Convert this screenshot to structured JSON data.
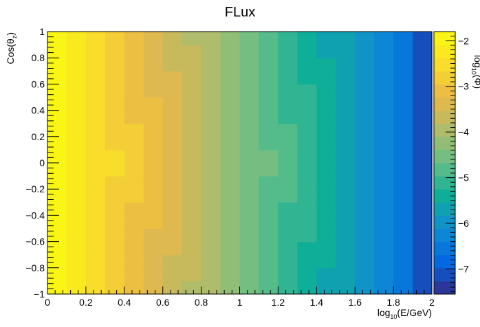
{
  "chart_data": {
    "type": "heatmap",
    "title": "FLux",
    "xlabel": {
      "pre": "log",
      "sub": "10",
      "post": "(E/GeV)"
    },
    "ylabel": {
      "pre": "Cos(θ",
      "sub": "z",
      "post": ")"
    },
    "zlabel": {
      "pre": "log",
      "sub": "10",
      "post": "(Φ)"
    },
    "xlim": [
      0,
      2
    ],
    "ylim": [
      -1,
      1
    ],
    "zlim": [
      -7.55,
      -1.8
    ],
    "x_ticks": [
      {
        "value": 0,
        "label": "0"
      },
      {
        "value": 0.2,
        "label": "0.2"
      },
      {
        "value": 0.4,
        "label": "0.4"
      },
      {
        "value": 0.6,
        "label": "0.6"
      },
      {
        "value": 0.8,
        "label": "0.8"
      },
      {
        "value": 1,
        "label": "1"
      },
      {
        "value": 1.2,
        "label": "1.2"
      },
      {
        "value": 1.4,
        "label": "1.4"
      },
      {
        "value": 1.6,
        "label": "1.6"
      },
      {
        "value": 1.8,
        "label": "1.8"
      },
      {
        "value": 2,
        "label": "2"
      }
    ],
    "y_ticks": [
      {
        "value": -1,
        "label": "−1"
      },
      {
        "value": -0.8,
        "label": "−0.8"
      },
      {
        "value": -0.6,
        "label": "−0.6"
      },
      {
        "value": -0.4,
        "label": "−0.4"
      },
      {
        "value": -0.2,
        "label": "−0.2"
      },
      {
        "value": 0,
        "label": "0"
      },
      {
        "value": 0.2,
        "label": "0.2"
      },
      {
        "value": 0.4,
        "label": "0.4"
      },
      {
        "value": 0.6,
        "label": "0.6"
      },
      {
        "value": 0.8,
        "label": "0.8"
      },
      {
        "value": 1,
        "label": "1"
      }
    ],
    "z_ticks": [
      {
        "value": -2,
        "label": "−2"
      },
      {
        "value": -3,
        "label": "−3"
      },
      {
        "value": -4,
        "label": "−4"
      },
      {
        "value": -5,
        "label": "−5"
      },
      {
        "value": -6,
        "label": "−6"
      },
      {
        "value": -7,
        "label": "−7"
      }
    ],
    "x_bins": 20,
    "y_bins": 20,
    "y_bin_centers": [
      -0.95,
      -0.85,
      -0.75,
      -0.65,
      -0.55,
      -0.45,
      -0.35,
      -0.25,
      -0.15,
      -0.05,
      0.05,
      0.15,
      0.25,
      0.35,
      0.45,
      0.55,
      0.65,
      0.75,
      0.85,
      0.95
    ],
    "column_center_values": [
      -1.9,
      -2.15,
      -2.4,
      -2.65,
      -2.9,
      -3.15,
      -3.4,
      -3.65,
      -3.9,
      -4.15,
      -4.4,
      -4.65,
      -4.9,
      -5.15,
      -5.4,
      -5.65,
      -5.9,
      -6.15,
      -6.4,
      -7.0
    ],
    "cos_modulation_amplitude": 0.18,
    "palette": [
      "#352a87",
      "#0268e1",
      "#108ed2",
      "#0fae99",
      "#65be86",
      "#aebc6b",
      "#e9b849",
      "#f9dd2b",
      "#f9fb0e"
    ],
    "palette_levels": 20,
    "grid": false,
    "colorbar": "right"
  }
}
